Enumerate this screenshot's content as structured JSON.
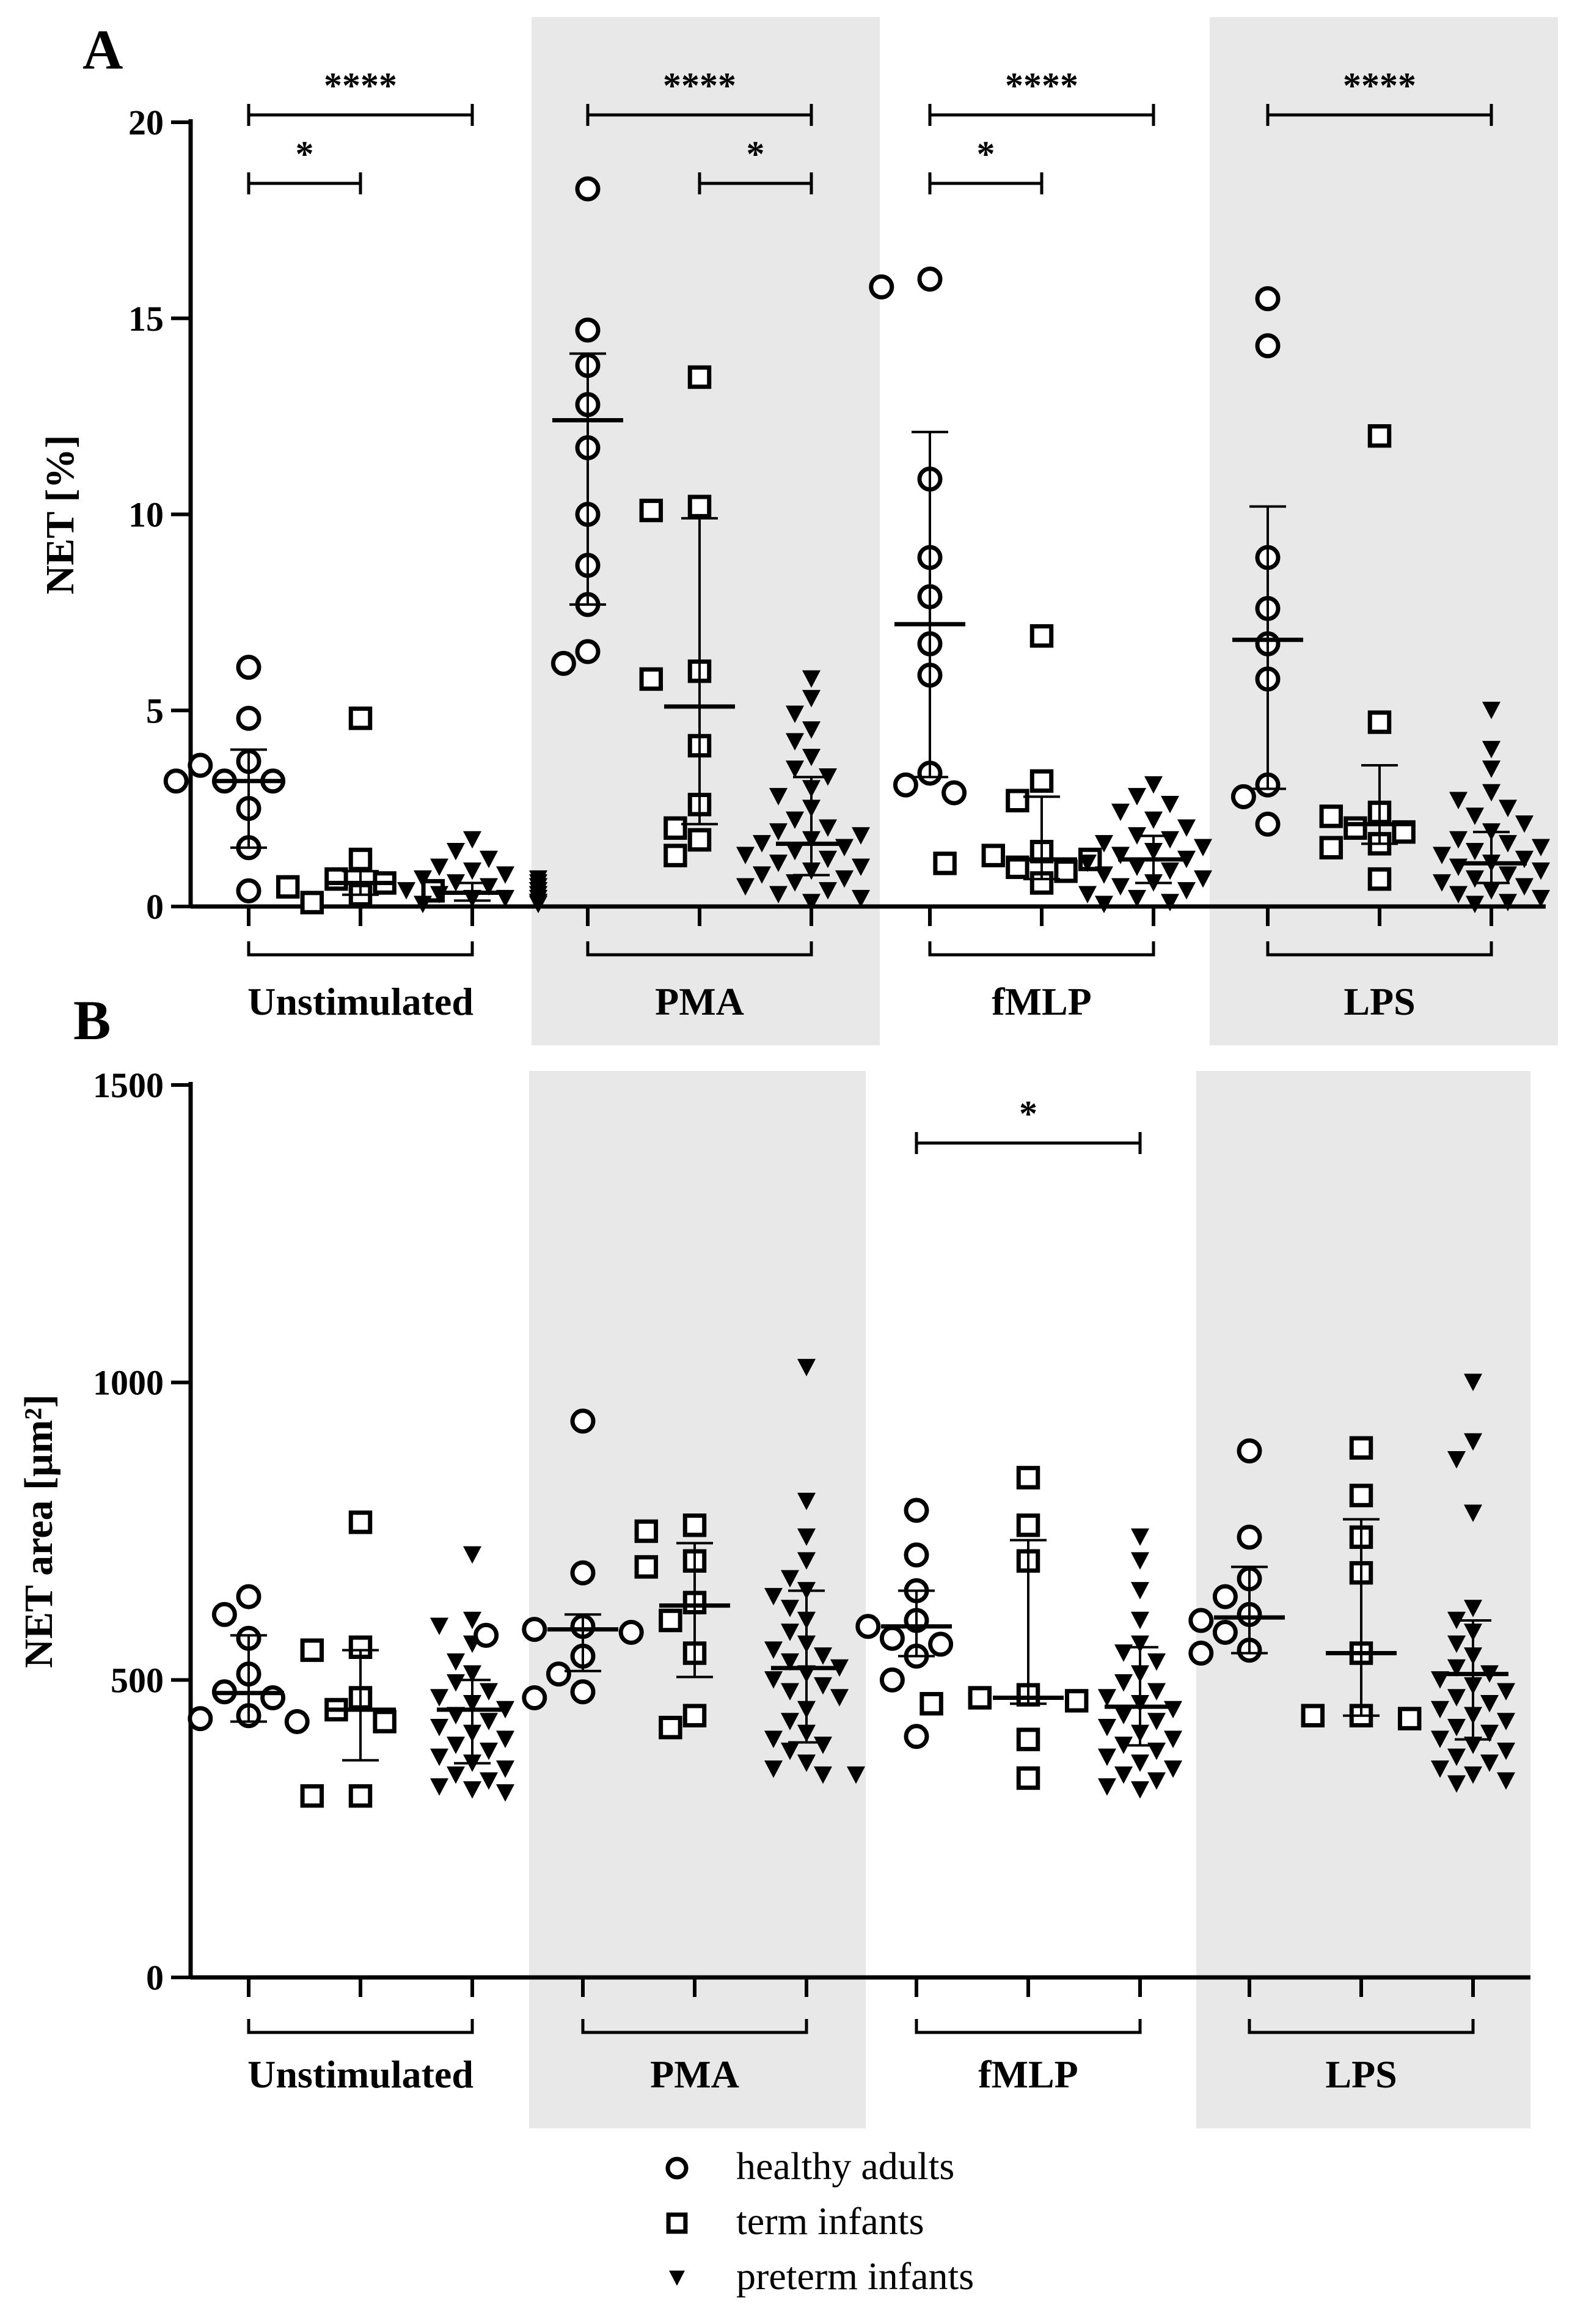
{
  "legend": {
    "items": [
      {
        "label": "healthy adults",
        "marker": "circle"
      },
      {
        "label": "term infants",
        "marker": "square"
      },
      {
        "label": "preterm infants",
        "marker": "triangle-down"
      }
    ]
  },
  "colors": {
    "marker_stroke": "#000000",
    "shade": "#e8e8e8"
  },
  "chart_data": [
    {
      "panel": "A",
      "type": "scatter",
      "ylabel": "NET [%]",
      "ylim": [
        0,
        20
      ],
      "yticks": [
        "0",
        "5",
        "10",
        "15",
        "20"
      ],
      "ytick_values": [
        0,
        5,
        10,
        15,
        20
      ],
      "group_labels": [
        "Unstimulated",
        "PMA",
        "fMLP",
        "LPS"
      ],
      "shaded_groups": [
        "PMA",
        "LPS"
      ],
      "series_names": [
        "healthy adults",
        "term infants",
        "preterm infants"
      ],
      "groups": [
        {
          "name": "Unstimulated",
          "series": [
            {
              "name": "healthy adults",
              "mean": 3.2,
              "sd_low": 1.5,
              "sd_high": 4.0,
              "points": [
                6.1,
                4.8,
                3.7,
                3.6,
                3.2,
                3.2,
                3.2,
                2.5,
                1.5,
                0.4
              ]
            },
            {
              "name": "term infants",
              "mean": 0.6,
              "sd_low": 0.3,
              "sd_high": 0.9,
              "points": [
                4.8,
                1.2,
                0.7,
                0.6,
                0.5,
                0.4,
                0.3,
                0.1
              ]
            },
            {
              "name": "preterm infants",
              "mean": 0.35,
              "sd_low": 0.15,
              "sd_high": 0.6,
              "points": [
                1.7,
                1.4,
                1.2,
                1.0,
                0.9,
                0.8,
                0.7,
                0.7,
                0.6,
                0.6,
                0.5,
                0.5,
                0.5,
                0.4,
                0.4,
                0.4,
                0.3,
                0.3,
                0.3,
                0.3,
                0.2,
                0.2,
                0.2,
                0.2,
                0.1,
                0.1,
                0.1,
                0.1,
                0.05,
                0.05
              ]
            }
          ]
        },
        {
          "name": "PMA",
          "series": [
            {
              "name": "healthy adults",
              "mean": 12.4,
              "sd_low": 7.7,
              "sd_high": 14.1,
              "points": [
                18.3,
                14.7,
                13.8,
                12.8,
                11.7,
                10.0,
                8.7,
                7.7,
                6.5,
                6.2
              ]
            },
            {
              "name": "term infants",
              "mean": 5.1,
              "sd_low": 2.1,
              "sd_high": 9.9,
              "points": [
                13.5,
                10.2,
                10.1,
                6.0,
                5.8,
                4.1,
                2.6,
                2.0,
                1.7,
                1.3
              ]
            },
            {
              "name": "preterm infants",
              "mean": 1.6,
              "sd_low": 0.8,
              "sd_high": 3.3,
              "points": [
                5.8,
                5.3,
                4.9,
                4.5,
                4.2,
                3.8,
                3.5,
                3.3,
                3.0,
                2.8,
                2.5,
                2.2,
                2.0,
                1.9,
                1.8,
                1.7,
                1.6,
                1.5,
                1.4,
                1.3,
                1.2,
                1.1,
                1.0,
                0.9,
                0.8,
                0.7,
                0.6,
                0.5,
                0.4,
                0.3,
                0.2,
                0.1
              ]
            }
          ]
        },
        {
          "name": "fMLP",
          "series": [
            {
              "name": "healthy adults",
              "mean": 7.2,
              "sd_low": 3.3,
              "sd_high": 12.1,
              "points": [
                16.0,
                15.8,
                10.9,
                8.9,
                7.9,
                6.7,
                5.9,
                3.4,
                3.1,
                2.9
              ]
            },
            {
              "name": "term infants",
              "mean": 1.2,
              "sd_low": 0.7,
              "sd_high": 2.8,
              "points": [
                6.9,
                3.2,
                2.7,
                1.4,
                1.3,
                1.2,
                1.1,
                1.0,
                0.9,
                0.6
              ]
            },
            {
              "name": "preterm infants",
              "mean": 1.2,
              "sd_low": 0.6,
              "sd_high": 1.8,
              "points": [
                3.1,
                2.8,
                2.6,
                2.4,
                2.2,
                2.0,
                1.8,
                1.7,
                1.6,
                1.5,
                1.4,
                1.3,
                1.2,
                1.1,
                1.0,
                0.9,
                0.8,
                0.7,
                0.6,
                0.5,
                0.4,
                0.3,
                0.2,
                0.1,
                0.05
              ]
            }
          ]
        },
        {
          "name": "LPS",
          "series": [
            {
              "name": "healthy adults",
              "mean": 6.8,
              "sd_low": 3.0,
              "sd_high": 10.2,
              "points": [
                15.5,
                14.3,
                8.9,
                7.6,
                6.7,
                5.8,
                3.1,
                2.8,
                2.1
              ]
            },
            {
              "name": "term infants",
              "mean": 2.1,
              "sd_low": 1.6,
              "sd_high": 3.6,
              "points": [
                12.0,
                4.7,
                2.4,
                2.3,
                2.0,
                1.9,
                1.6,
                1.5,
                0.7
              ]
            },
            {
              "name": "preterm infants",
              "mean": 1.1,
              "sd_low": 0.6,
              "sd_high": 1.9,
              "points": [
                5.0,
                4.0,
                3.5,
                2.9,
                2.7,
                2.5,
                2.3,
                2.1,
                1.9,
                1.7,
                1.6,
                1.5,
                1.4,
                1.3,
                1.2,
                1.1,
                1.0,
                0.9,
                0.8,
                0.7,
                0.6,
                0.5,
                0.4,
                0.3,
                0.2,
                0.1,
                0.05
              ]
            }
          ]
        }
      ],
      "significance": [
        {
          "group": "Unstimulated",
          "from": 0,
          "to": 2,
          "label": "****",
          "y": 20.0
        },
        {
          "group": "Unstimulated",
          "from": 0,
          "to": 1,
          "label": "*",
          "y": 18.3
        },
        {
          "group": "PMA",
          "from": 0,
          "to": 2,
          "label": "****",
          "y": 20.0
        },
        {
          "group": "PMA",
          "from": 1,
          "to": 2,
          "label": "*",
          "y": 18.3
        },
        {
          "group": "fMLP",
          "from": 0,
          "to": 2,
          "label": "****",
          "y": 20.0
        },
        {
          "group": "fMLP",
          "from": 0,
          "to": 1,
          "label": "*",
          "y": 18.3
        },
        {
          "group": "LPS",
          "from": 0,
          "to": 2,
          "label": "****",
          "y": 20.0
        }
      ]
    },
    {
      "panel": "B",
      "type": "scatter",
      "ylabel": "NET area [µm²]",
      "ylim": [
        0,
        1500
      ],
      "yticks": [
        "0",
        "500",
        "1000",
        "1500"
      ],
      "ytick_values": [
        0,
        500,
        1000,
        1500
      ],
      "group_labels": [
        "Unstimulated",
        "PMA",
        "fMLP",
        "LPS"
      ],
      "shaded_groups": [
        "PMA",
        "LPS"
      ],
      "series_names": [
        "healthy adults",
        "term infants",
        "preterm infants"
      ],
      "groups": [
        {
          "name": "Unstimulated",
          "series": [
            {
              "name": "healthy adults",
              "mean": 478,
              "sd_low": 430,
              "sd_high": 575,
              "points": [
                640,
                610,
                570,
                510,
                480,
                470,
                440,
                435,
                430
              ]
            },
            {
              "name": "term infants",
              "mean": 450,
              "sd_low": 365,
              "sd_high": 550,
              "points": [
                765,
                555,
                550,
                470,
                450,
                430,
                305,
                305
              ]
            },
            {
              "name": "preterm infants",
              "mean": 450,
              "sd_low": 360,
              "sd_high": 500,
              "points": [
                710,
                600,
                590,
                560,
                530,
                510,
                495,
                480,
                470,
                460,
                450,
                440,
                430,
                420,
                410,
                400,
                390,
                380,
                370,
                360,
                350,
                340,
                330,
                320,
                315,
                310
              ]
            }
          ]
        },
        {
          "name": "PMA",
          "series": [
            {
              "name": "healthy adults",
              "mean": 585,
              "sd_low": 515,
              "sd_high": 610,
              "points": [
                935,
                680,
                590,
                585,
                580,
                575,
                540,
                510,
                480,
                470
              ]
            },
            {
              "name": "term infants",
              "mean": 625,
              "sd_low": 505,
              "sd_high": 730,
              "points": [
                760,
                750,
                700,
                690,
                630,
                600,
                545,
                440,
                420
              ]
            },
            {
              "name": "preterm infants",
              "mean": 520,
              "sd_low": 395,
              "sd_high": 650,
              "points": [
                1025,
                800,
                740,
                700,
                670,
                650,
                640,
                620,
                600,
                580,
                560,
                550,
                540,
                530,
                520,
                510,
                500,
                490,
                480,
                470,
                450,
                430,
                410,
                400,
                390,
                380,
                360,
                350,
                340,
                340
              ]
            }
          ]
        },
        {
          "name": "fMLP",
          "series": [
            {
              "name": "healthy adults",
              "mean": 590,
              "sd_low": 540,
              "sd_high": 650,
              "points": [
                785,
                710,
                650,
                600,
                590,
                570,
                560,
                540,
                500,
                405
              ]
            },
            {
              "name": "term infants",
              "mean": 470,
              "sd_low": 460,
              "sd_high": 735,
              "points": [
                840,
                760,
                700,
                475,
                470,
                465,
                460,
                400,
                335
              ]
            },
            {
              "name": "preterm infants",
              "mean": 455,
              "sd_low": 390,
              "sd_high": 555,
              "points": [
                740,
                700,
                650,
                600,
                560,
                545,
                530,
                510,
                495,
                480,
                470,
                460,
                450,
                440,
                430,
                420,
                410,
                400,
                390,
                380,
                370,
                360,
                350,
                340,
                330,
                320,
                315
              ]
            }
          ]
        },
        {
          "name": "LPS",
          "series": [
            {
              "name": "healthy adults",
              "mean": 605,
              "sd_low": 545,
              "sd_high": 690,
              "points": [
                885,
                740,
                670,
                640,
                610,
                600,
                580,
                550,
                545
              ]
            },
            {
              "name": "term infants",
              "mean": 545,
              "sd_low": 440,
              "sd_high": 770,
              "points": [
                890,
                810,
                740,
                680,
                545,
                440,
                440,
                435
              ]
            },
            {
              "name": "preterm infants",
              "mean": 510,
              "sd_low": 400,
              "sd_high": 600,
              "points": [
                1000,
                900,
                870,
                780,
                620,
                600,
                580,
                560,
                540,
                520,
                510,
                500,
                490,
                480,
                470,
                460,
                450,
                440,
                430,
                420,
                410,
                400,
                390,
                380,
                370,
                360,
                350,
                340,
                330,
                325
              ]
            }
          ]
        }
      ],
      "significance": [
        {
          "group": "fMLP",
          "from": 0,
          "to": 2,
          "label": "*",
          "y": 1400
        }
      ]
    }
  ]
}
